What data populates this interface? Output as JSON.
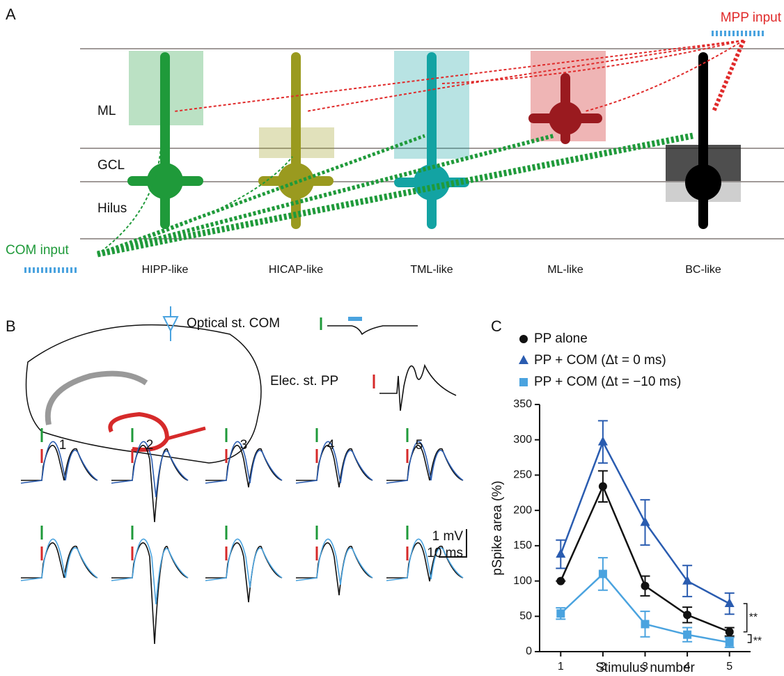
{
  "panel_a": {
    "label": "A",
    "layers": [
      "ML",
      "GCL",
      "Hilus"
    ],
    "cells": [
      "HIPP-like",
      "HICAP-like",
      "TML-like",
      "ML-like",
      "BC-like"
    ],
    "mpp_input": "MPP input",
    "com_input": "COM input"
  },
  "panel_b": {
    "label": "B",
    "optical": "Optical st. COM",
    "electrical": "Elec. st. PP",
    "trace_numbers": [
      "1",
      "2",
      "3",
      "4",
      "5"
    ],
    "scale_mv": "1 mV",
    "scale_ms": "10 ms"
  },
  "chart_data": {
    "type": "line",
    "panel_label": "C",
    "x_label": "Stimulus number",
    "y_label": "pSpike area (%)",
    "x": [
      1,
      2,
      3,
      4,
      5
    ],
    "xlim": [
      0.5,
      5.5
    ],
    "xticks": [
      1,
      2,
      3,
      4,
      5
    ],
    "ylim": [
      0,
      350
    ],
    "yticks": [
      0,
      50,
      100,
      150,
      200,
      250,
      300,
      350
    ],
    "series": [
      {
        "name": "PP alone",
        "color": "#111111",
        "marker": "circle",
        "values": [
          100,
          234,
          93,
          52,
          28
        ],
        "errors": [
          0,
          22,
          14,
          11,
          6
        ]
      },
      {
        "name": "PP + COM (Δt = 0 ms)",
        "color": "#2a5cb0",
        "marker": "triangle",
        "values": [
          138,
          297,
          183,
          100,
          68
        ],
        "errors": [
          20,
          30,
          32,
          22,
          15
        ]
      },
      {
        "name": "PP + COM (Δt = −10 ms)",
        "color": "#4aa3df",
        "marker": "square",
        "values": [
          54,
          110,
          39,
          24,
          13
        ],
        "errors": [
          8,
          23,
          18,
          10,
          7
        ]
      }
    ],
    "annotations": [
      "**",
      "**"
    ]
  }
}
